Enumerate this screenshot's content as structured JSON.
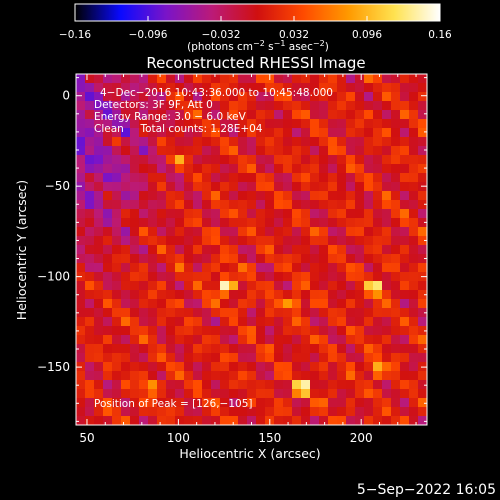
{
  "chart_data": {
    "type": "heatmap",
    "title": "Reconstructed RHESSI Image",
    "xlabel": "Heliocentric X (arcsec)",
    "ylabel": "Heliocentric Y (arcsec)",
    "x_ticks": [
      50,
      100,
      150,
      200
    ],
    "x_tick_labels": [
      "50",
      "100",
      "150",
      "200"
    ],
    "y_ticks": [
      0,
      -50,
      -100,
      -150
    ],
    "y_tick_labels": [
      "0",
      "−50",
      "−100",
      "−150"
    ],
    "xlim": [
      44,
      236
    ],
    "ylim": [
      -182,
      12
    ],
    "colorbar": {
      "range": [
        -0.16,
        0.16
      ],
      "ticks": [
        -0.16,
        -0.096,
        -0.032,
        0.032,
        0.096,
        0.16
      ],
      "tick_labels": [
        "−0.16",
        "−0.096",
        "−0.032",
        "0.032",
        "0.096",
        "0.16"
      ],
      "unit_label_parts": [
        "(photons cm",
        "−2",
        " s",
        "−1",
        " asec",
        "−2",
        ")"
      ],
      "colormap": [
        "#000000",
        "#0a0aff",
        "#7a14c8",
        "#bb1a78",
        "#d01010",
        "#ff4a00",
        "#ff9a00",
        "#ffe250",
        "#ffffff"
      ]
    },
    "info_lines": [
      "4−Dec−2016 10:43:36.000 to 10:45:48.000",
      "Detectors: 3F 9F, Att 0",
      "Energy Range: 3.0 − 6.0 keV",
      "Clean     Total counts: 1.28E+04"
    ],
    "peak_label": "Position of Peak = [126,−105]",
    "peak": {
      "x": 126,
      "y": -105
    },
    "sources": [
      {
        "x": 126,
        "y": -105,
        "strength": 1.0
      },
      {
        "x": 168,
        "y": -161,
        "strength": 0.85
      },
      {
        "x": 208,
        "y": -106,
        "strength": 0.78
      },
      {
        "x": 208,
        "y": -151,
        "strength": 0.7
      },
      {
        "x": 163,
        "y": -114,
        "strength": 0.55
      },
      {
        "x": 85,
        "y": -160,
        "strength": 0.5
      },
      {
        "x": 65,
        "y": -25,
        "strength": 0.45
      },
      {
        "x": 100,
        "y": -35,
        "strength": 0.4
      }
    ]
  },
  "footer": {
    "timestamp": "5−Sep−2022 16:05"
  }
}
